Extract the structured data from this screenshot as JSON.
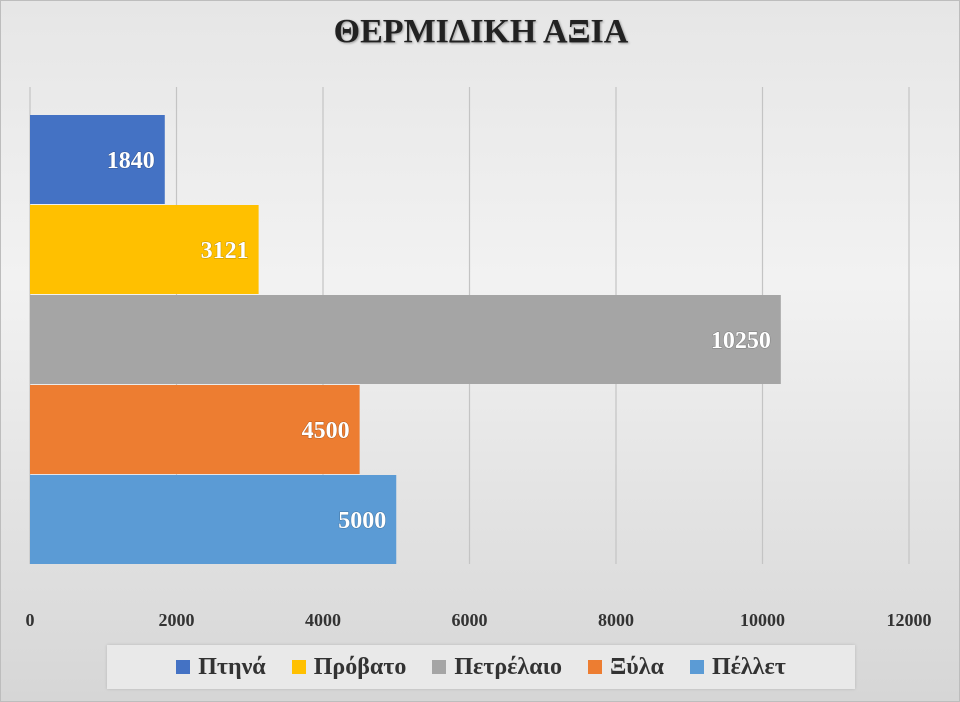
{
  "chart_data": {
    "type": "bar",
    "orientation": "horizontal",
    "title": "ΘΕΡΜΙΔΙΚΗ ΑΞΙΑ",
    "categories": [
      "Πτηνά",
      "Πρόβατο",
      "Πετρέλαιο",
      "Ξύλα",
      "Πέλλετ"
    ],
    "series": [
      {
        "name": "Πτηνά",
        "value": 1840,
        "color": "#4472C4"
      },
      {
        "name": "Πρόβατο",
        "value": 3121,
        "color": "#FFC000"
      },
      {
        "name": "Πετρέλαιο",
        "value": 10250,
        "color": "#A5A5A5"
      },
      {
        "name": "Ξύλα",
        "value": 4500,
        "color": "#ED7D31"
      },
      {
        "name": "Πέλλετ",
        "value": 5000,
        "color": "#5B9BD5"
      }
    ],
    "xlim": [
      0,
      12000
    ],
    "xticks": [
      "0",
      "2000",
      "4000",
      "6000",
      "8000",
      "10000",
      "12000"
    ],
    "grid": "vertical",
    "legend": "bottom",
    "data_labels": true
  }
}
